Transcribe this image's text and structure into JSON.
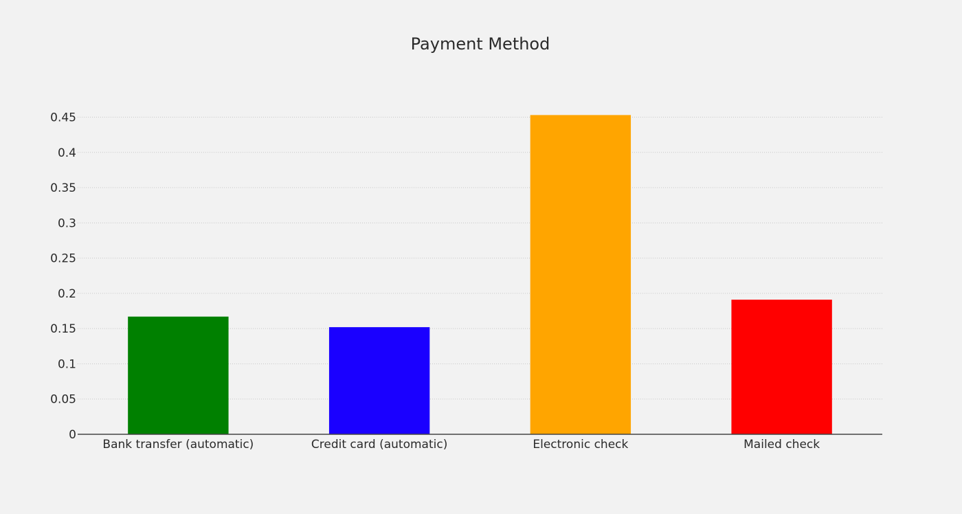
{
  "chart_data": {
    "type": "bar",
    "title": "Payment Method",
    "xlabel": "",
    "ylabel": "",
    "categories": [
      "Bank transfer (automatic)",
      "Credit card (automatic)",
      "Electronic check",
      "Mailed check"
    ],
    "values": [
      0.167,
      0.152,
      0.453,
      0.191
    ],
    "colors": [
      "#008000",
      "#1a00ff",
      "#ffa500",
      "#ff0000"
    ],
    "ylim": [
      0,
      0.47
    ],
    "yticks": [
      0,
      0.05,
      0.1,
      0.15,
      0.2,
      0.25,
      0.3,
      0.35,
      0.4,
      0.45
    ],
    "ytick_labels": [
      "0",
      "0.05",
      "0.1",
      "0.15",
      "0.2",
      "0.25",
      "0.3",
      "0.35",
      "0.4",
      "0.45"
    ],
    "grid": true,
    "legend": "none"
  }
}
